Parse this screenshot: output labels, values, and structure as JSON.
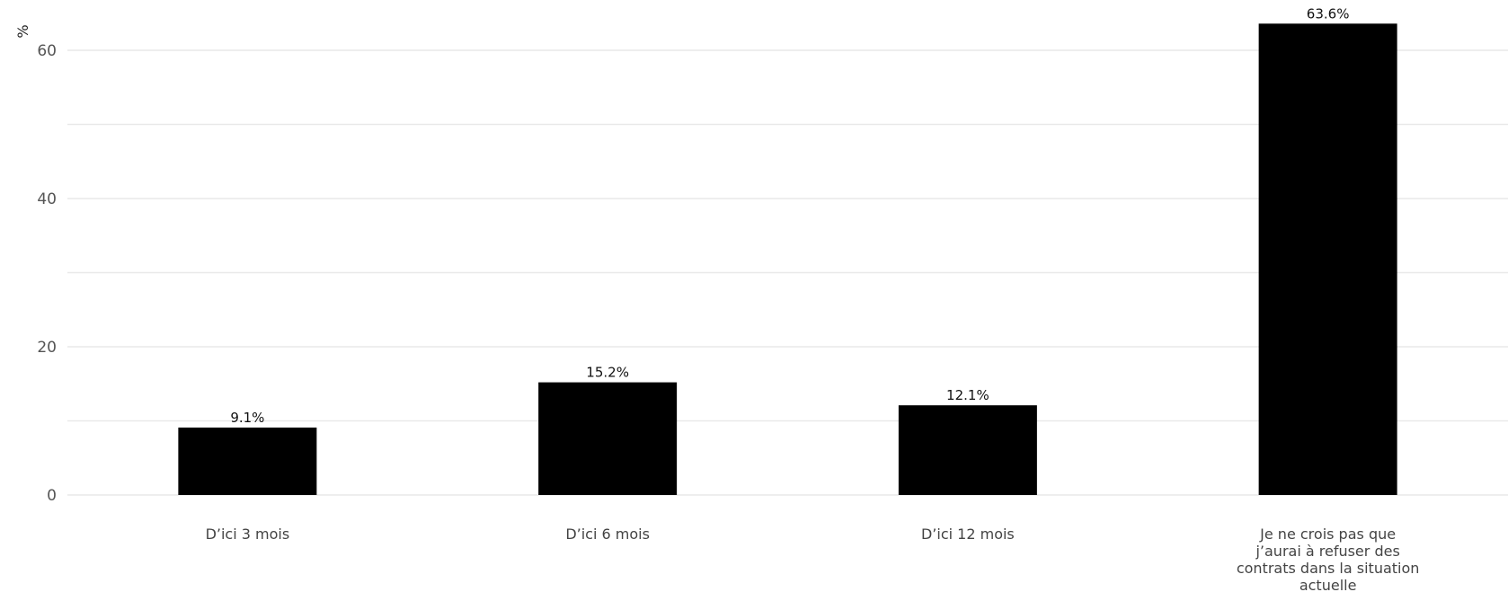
{
  "chart_data": {
    "type": "bar",
    "ylabel": "%",
    "xlabel": "",
    "ylim": [
      0,
      64
    ],
    "y_ticks": [
      0,
      20,
      40,
      60
    ],
    "grid": true,
    "categories": [
      "D’ici 3 mois",
      "D’ici 6 mois",
      "D’ici 12 mois",
      "Je ne crois pas que j’aurai à refuser des contrats dans la situation actuelle"
    ],
    "category_lines": [
      [
        "D’ici 3 mois"
      ],
      [
        "D’ici 6 mois"
      ],
      [
        "D’ici 12 mois"
      ],
      [
        "Je ne crois pas que",
        "j’aurai à refuser des",
        "contrats dans la situation",
        "actuelle"
      ]
    ],
    "values": [
      9.1,
      15.2,
      12.1,
      63.6
    ],
    "data_labels": [
      "9.1%",
      "15.2%",
      "12.1%",
      "63.6%"
    ],
    "bar_color": "#000000",
    "grid_color": "#e9e9e9"
  }
}
